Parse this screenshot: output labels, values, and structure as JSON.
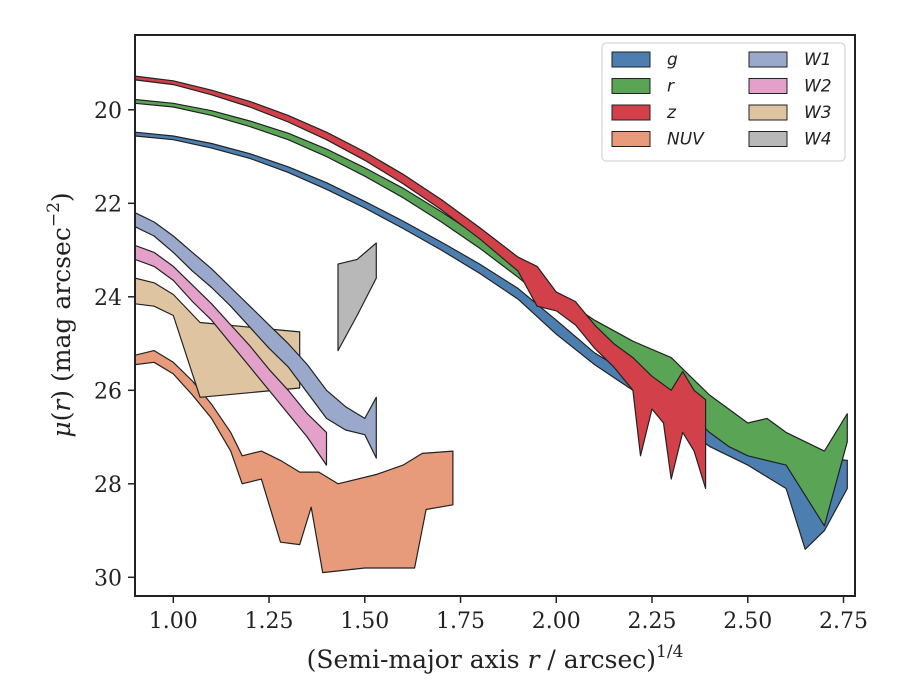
{
  "chart_data": {
    "type": "area",
    "xlabel": "(Semi-major axis r / arcsec)^{1/4}",
    "xlabel_parts": {
      "pre": "(Semi-major axis ",
      "var": "r",
      "mid": " / arcsec)",
      "sup": "1/4"
    },
    "ylabel": "μ(r) (mag arcsec^{-2})",
    "ylabel_parts": {
      "mu": "μ",
      "lp": "(",
      "var": "r",
      "rp": ")",
      "unit": " (mag arcsec",
      "sup": "−2",
      "end": ")"
    },
    "xlim": [
      0.9,
      2.78
    ],
    "ylim": [
      30.4,
      18.4
    ],
    "y_inverted": true,
    "xticks": [
      1.0,
      1.25,
      1.5,
      1.75,
      2.0,
      2.25,
      2.5,
      2.75
    ],
    "xtick_labels": [
      "1.00",
      "1.25",
      "1.50",
      "1.75",
      "2.00",
      "2.25",
      "2.50",
      "2.75"
    ],
    "yticks": [
      20,
      22,
      24,
      26,
      28,
      30
    ],
    "ytick_labels": [
      "20",
      "22",
      "24",
      "26",
      "28",
      "30"
    ],
    "grid": false,
    "legend": {
      "position": "top-right",
      "columns": 2
    },
    "series": [
      {
        "name": "g",
        "color": "#4c7fb0",
        "upper": [
          [
            0.9,
            20.48
          ],
          [
            1.0,
            20.56
          ],
          [
            1.1,
            20.72
          ],
          [
            1.2,
            20.94
          ],
          [
            1.3,
            21.22
          ],
          [
            1.4,
            21.56
          ],
          [
            1.5,
            21.96
          ],
          [
            1.6,
            22.38
          ],
          [
            1.7,
            22.83
          ],
          [
            1.8,
            23.3
          ],
          [
            1.9,
            23.82
          ],
          [
            2.0,
            24.5
          ],
          [
            2.1,
            25.2
          ],
          [
            2.2,
            25.7
          ],
          [
            2.25,
            25.85
          ],
          [
            2.3,
            26.1
          ],
          [
            2.35,
            26.3
          ],
          [
            2.4,
            26.5
          ],
          [
            2.5,
            26.8
          ],
          [
            2.6,
            27.1
          ],
          [
            2.7,
            27.45
          ],
          [
            2.76,
            27.5
          ]
        ],
        "lower": [
          [
            0.9,
            20.56
          ],
          [
            1.0,
            20.64
          ],
          [
            1.1,
            20.82
          ],
          [
            1.2,
            21.04
          ],
          [
            1.3,
            21.34
          ],
          [
            1.4,
            21.7
          ],
          [
            1.5,
            22.1
          ],
          [
            1.6,
            22.54
          ],
          [
            1.7,
            23.0
          ],
          [
            1.8,
            23.5
          ],
          [
            1.9,
            24.05
          ],
          [
            2.0,
            24.8
          ],
          [
            2.1,
            25.45
          ],
          [
            2.2,
            26.0
          ],
          [
            2.25,
            26.3
          ],
          [
            2.3,
            26.6
          ],
          [
            2.35,
            26.9
          ],
          [
            2.4,
            27.2
          ],
          [
            2.5,
            27.6
          ],
          [
            2.6,
            28.1
          ],
          [
            2.65,
            29.4
          ],
          [
            2.7,
            29.0
          ],
          [
            2.76,
            28.1
          ]
        ]
      },
      {
        "name": "r",
        "color": "#5aa456",
        "upper": [
          [
            0.9,
            19.78
          ],
          [
            1.0,
            19.86
          ],
          [
            1.1,
            20.02
          ],
          [
            1.2,
            20.24
          ],
          [
            1.3,
            20.5
          ],
          [
            1.4,
            20.84
          ],
          [
            1.5,
            21.24
          ],
          [
            1.6,
            21.68
          ],
          [
            1.7,
            22.18
          ],
          [
            1.8,
            22.72
          ],
          [
            1.9,
            23.3
          ],
          [
            2.0,
            23.95
          ],
          [
            2.1,
            24.5
          ],
          [
            2.2,
            24.95
          ],
          [
            2.3,
            25.3
          ],
          [
            2.35,
            25.7
          ],
          [
            2.4,
            26.1
          ],
          [
            2.5,
            26.7
          ],
          [
            2.55,
            26.6
          ],
          [
            2.6,
            26.9
          ],
          [
            2.7,
            27.3
          ],
          [
            2.76,
            26.5
          ]
        ],
        "lower": [
          [
            0.9,
            19.86
          ],
          [
            1.0,
            19.94
          ],
          [
            1.1,
            20.12
          ],
          [
            1.2,
            20.36
          ],
          [
            1.3,
            20.64
          ],
          [
            1.4,
            21.0
          ],
          [
            1.5,
            21.42
          ],
          [
            1.6,
            21.88
          ],
          [
            1.7,
            22.4
          ],
          [
            1.8,
            22.96
          ],
          [
            1.9,
            23.58
          ],
          [
            2.0,
            24.25
          ],
          [
            2.1,
            24.9
          ],
          [
            2.2,
            25.5
          ],
          [
            2.3,
            26.0
          ],
          [
            2.35,
            26.5
          ],
          [
            2.4,
            26.9
          ],
          [
            2.45,
            27.2
          ],
          [
            2.5,
            27.4
          ],
          [
            2.6,
            27.6
          ],
          [
            2.7,
            28.9
          ],
          [
            2.76,
            27.1
          ]
        ]
      },
      {
        "name": "z",
        "color": "#d2404a",
        "upper": [
          [
            0.9,
            19.28
          ],
          [
            1.0,
            19.38
          ],
          [
            1.1,
            19.58
          ],
          [
            1.2,
            19.82
          ],
          [
            1.3,
            20.12
          ],
          [
            1.4,
            20.48
          ],
          [
            1.5,
            20.9
          ],
          [
            1.6,
            21.38
          ],
          [
            1.7,
            21.92
          ],
          [
            1.8,
            22.52
          ],
          [
            1.9,
            23.15
          ],
          [
            1.95,
            23.35
          ],
          [
            2.0,
            23.9
          ],
          [
            2.05,
            24.1
          ],
          [
            2.1,
            24.6
          ],
          [
            2.15,
            25.0
          ],
          [
            2.2,
            25.3
          ],
          [
            2.25,
            25.7
          ],
          [
            2.3,
            26.0
          ],
          [
            2.33,
            25.6
          ],
          [
            2.36,
            26.0
          ],
          [
            2.39,
            26.2
          ]
        ],
        "lower": [
          [
            0.9,
            19.36
          ],
          [
            1.0,
            19.46
          ],
          [
            1.1,
            19.68
          ],
          [
            1.2,
            19.94
          ],
          [
            1.3,
            20.26
          ],
          [
            1.4,
            20.64
          ],
          [
            1.5,
            21.08
          ],
          [
            1.6,
            21.58
          ],
          [
            1.7,
            22.14
          ],
          [
            1.8,
            22.76
          ],
          [
            1.9,
            23.45
          ],
          [
            1.95,
            24.2
          ],
          [
            2.0,
            24.3
          ],
          [
            2.05,
            24.6
          ],
          [
            2.1,
            25.1
          ],
          [
            2.15,
            25.5
          ],
          [
            2.2,
            26.0
          ],
          [
            2.22,
            27.4
          ],
          [
            2.25,
            26.4
          ],
          [
            2.28,
            26.7
          ],
          [
            2.3,
            27.9
          ],
          [
            2.33,
            26.9
          ],
          [
            2.36,
            27.3
          ],
          [
            2.39,
            28.1
          ]
        ]
      },
      {
        "name": "NUV",
        "color": "#e89b7a",
        "upper": [
          [
            0.9,
            25.25
          ],
          [
            0.95,
            25.15
          ],
          [
            1.0,
            25.4
          ],
          [
            1.05,
            25.8
          ],
          [
            1.1,
            26.3
          ],
          [
            1.15,
            26.9
          ],
          [
            1.18,
            27.4
          ],
          [
            1.23,
            27.3
          ],
          [
            1.28,
            27.5
          ],
          [
            1.33,
            27.75
          ],
          [
            1.38,
            27.75
          ],
          [
            1.43,
            28.0
          ],
          [
            1.53,
            27.8
          ],
          [
            1.6,
            27.6
          ],
          [
            1.65,
            27.35
          ],
          [
            1.73,
            27.3
          ]
        ],
        "lower": [
          [
            0.9,
            25.45
          ],
          [
            0.95,
            25.4
          ],
          [
            1.0,
            25.65
          ],
          [
            1.05,
            26.1
          ],
          [
            1.1,
            26.6
          ],
          [
            1.15,
            27.3
          ],
          [
            1.18,
            28.0
          ],
          [
            1.23,
            27.9
          ],
          [
            1.28,
            29.25
          ],
          [
            1.33,
            29.3
          ],
          [
            1.36,
            28.5
          ],
          [
            1.39,
            29.9
          ],
          [
            1.5,
            29.8
          ],
          [
            1.6,
            29.8
          ],
          [
            1.63,
            29.8
          ],
          [
            1.66,
            28.55
          ],
          [
            1.73,
            28.45
          ]
        ]
      },
      {
        "name": "W1",
        "color": "#9aa9cb",
        "upper": [
          [
            0.9,
            22.2
          ],
          [
            0.95,
            22.4
          ],
          [
            1.0,
            22.7
          ],
          [
            1.05,
            23.05
          ],
          [
            1.1,
            23.4
          ],
          [
            1.15,
            23.8
          ],
          [
            1.2,
            24.2
          ],
          [
            1.25,
            24.6
          ],
          [
            1.3,
            25.0
          ],
          [
            1.35,
            25.45
          ],
          [
            1.4,
            26.0
          ],
          [
            1.45,
            26.35
          ],
          [
            1.5,
            26.6
          ],
          [
            1.53,
            26.15
          ]
        ],
        "lower": [
          [
            0.9,
            22.5
          ],
          [
            0.95,
            22.7
          ],
          [
            1.0,
            23.05
          ],
          [
            1.05,
            23.45
          ],
          [
            1.1,
            23.8
          ],
          [
            1.15,
            24.2
          ],
          [
            1.2,
            24.65
          ],
          [
            1.25,
            25.1
          ],
          [
            1.3,
            25.5
          ],
          [
            1.35,
            26.05
          ],
          [
            1.4,
            26.6
          ],
          [
            1.45,
            26.85
          ],
          [
            1.5,
            26.95
          ],
          [
            1.53,
            27.45
          ]
        ]
      },
      {
        "name": "W2",
        "color": "#e3a0c8",
        "upper": [
          [
            0.9,
            22.9
          ],
          [
            0.95,
            23.05
          ],
          [
            1.0,
            23.35
          ],
          [
            1.05,
            23.75
          ],
          [
            1.1,
            24.15
          ],
          [
            1.15,
            24.6
          ],
          [
            1.2,
            25.05
          ],
          [
            1.25,
            25.55
          ],
          [
            1.3,
            26.0
          ],
          [
            1.35,
            26.5
          ],
          [
            1.4,
            26.9
          ]
        ],
        "lower": [
          [
            0.9,
            23.2
          ],
          [
            0.95,
            23.35
          ],
          [
            1.0,
            23.65
          ],
          [
            1.05,
            24.1
          ],
          [
            1.1,
            24.5
          ],
          [
            1.15,
            25.0
          ],
          [
            1.2,
            25.5
          ],
          [
            1.25,
            26.0
          ],
          [
            1.3,
            26.5
          ],
          [
            1.35,
            27.0
          ],
          [
            1.4,
            27.6
          ]
        ]
      },
      {
        "name": "W3",
        "color": "#dfc4a1",
        "upper": [
          [
            0.9,
            23.6
          ],
          [
            0.95,
            23.7
          ],
          [
            1.0,
            23.95
          ],
          [
            1.07,
            24.55
          ],
          [
            1.33,
            24.75
          ]
        ],
        "lower": [
          [
            0.9,
            24.15
          ],
          [
            0.95,
            24.2
          ],
          [
            1.0,
            24.4
          ],
          [
            1.07,
            26.15
          ],
          [
            1.33,
            25.95
          ]
        ]
      },
      {
        "name": "W4",
        "color": "#b8b8b8",
        "upper": [
          [
            1.43,
            23.3
          ],
          [
            1.48,
            23.2
          ],
          [
            1.53,
            22.85
          ]
        ],
        "lower": [
          [
            1.43,
            25.15
          ],
          [
            1.48,
            24.4
          ],
          [
            1.53,
            23.6
          ]
        ]
      }
    ]
  }
}
